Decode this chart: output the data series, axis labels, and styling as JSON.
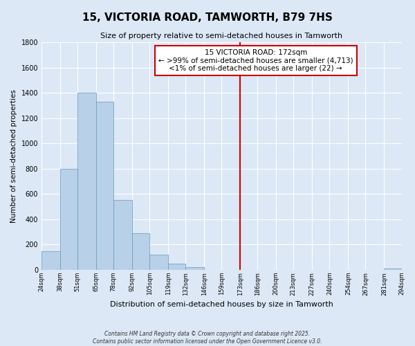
{
  "title": "15, VICTORIA ROAD, TAMWORTH, B79 7HS",
  "subtitle": "Size of property relative to semi-detached houses in Tamworth",
  "xlabel": "Distribution of semi-detached houses by size in Tamworth",
  "ylabel": "Number of semi-detached properties",
  "bin_edges": [
    24,
    38,
    51,
    65,
    78,
    92,
    105,
    119,
    132,
    146,
    159,
    173,
    186,
    200,
    213,
    227,
    240,
    254,
    267,
    281,
    294
  ],
  "bin_counts": [
    150,
    800,
    1400,
    1330,
    550,
    290,
    120,
    50,
    20,
    0,
    0,
    0,
    0,
    0,
    0,
    0,
    0,
    0,
    0,
    10
  ],
  "bar_color": "#b8d0e8",
  "bar_edge_color": "#6699bb",
  "background_color": "#dce8f5",
  "grid_color": "#ffffff",
  "vline_x": 173,
  "vline_color": "#cc0000",
  "annotation_text": "15 VICTORIA ROAD: 172sqm\n← >99% of semi-detached houses are smaller (4,713)\n<1% of semi-detached houses are larger (22) →",
  "annotation_box_edge": "#cc0000",
  "ylim": [
    0,
    1800
  ],
  "yticks": [
    0,
    200,
    400,
    600,
    800,
    1000,
    1200,
    1400,
    1600,
    1800
  ],
  "footer_line1": "Contains HM Land Registry data © Crown copyright and database right 2025.",
  "footer_line2": "Contains public sector information licensed under the Open Government Licence v3.0."
}
